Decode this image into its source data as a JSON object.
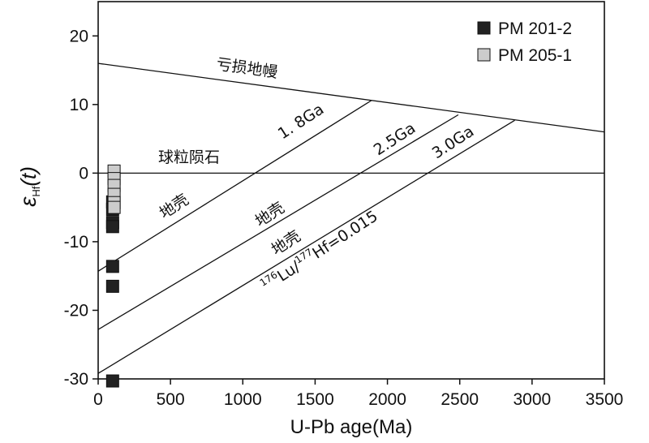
{
  "chart_data": {
    "type": "scatter",
    "title": "",
    "xlabel": "U-Pb age(Ma)",
    "ylabel": {
      "main": "ε",
      "sub": "Hf",
      "suffix": "(t)"
    },
    "xlim": [
      0,
      3500
    ],
    "ylim": [
      -30,
      25
    ],
    "xticks": [
      0,
      500,
      1000,
      1500,
      2000,
      2500,
      3000,
      3500
    ],
    "yticks": [
      20,
      10,
      0,
      -10,
      -20,
      -30
    ],
    "ytick_labels": [
      "20",
      "10",
      "0",
      "-10",
      "-20",
      "-30"
    ],
    "grid": false,
    "legend_position": "top-right",
    "series": [
      {
        "name": "PM 201-2",
        "color": "#222222",
        "marker": "square",
        "x": [
          100,
          100,
          100,
          100,
          100,
          100,
          100
        ],
        "y": [
          -4.2,
          -5.3,
          -7.2,
          -7.8,
          -13.6,
          -16.5,
          -30.3
        ]
      },
      {
        "name": "PM 205-1",
        "color": "#cccccc",
        "marker": "square",
        "x": [
          110,
          110,
          110,
          110,
          110,
          110
        ],
        "y": [
          0.3,
          -0.8,
          -1.8,
          -3.1,
          -4.3,
          -5.0
        ]
      }
    ],
    "lines": [
      {
        "id": "depleted-mantle",
        "x": [
          0,
          3500
        ],
        "y": [
          16.0,
          6.0
        ]
      },
      {
        "id": "chondrite",
        "x": [
          0,
          3500
        ],
        "y": [
          0,
          0
        ]
      },
      {
        "id": "crust-1.8ga",
        "x": [
          0,
          1890
        ],
        "y": [
          -14.3,
          10.6
        ]
      },
      {
        "id": "crust-2.5ga",
        "x": [
          0,
          2490
        ],
        "y": [
          -22.8,
          8.5
        ]
      },
      {
        "id": "crust-3.0ga",
        "x": [
          0,
          2880
        ],
        "y": [
          -29.2,
          7.7
        ]
      }
    ],
    "annotations": {
      "depleted_mantle": "亏损地幔",
      "chondrite": "球粒陨石",
      "crust": "地壳",
      "age_1_8": "1. 8Ga",
      "age_2_5": "2.5Ga",
      "age_3_0": "3.0Ga",
      "lu_hf_pre1": "176",
      "lu_hf_mid1": "Lu/",
      "lu_hf_pre2": "177",
      "lu_hf_mid2": "Hf=0.015"
    }
  }
}
